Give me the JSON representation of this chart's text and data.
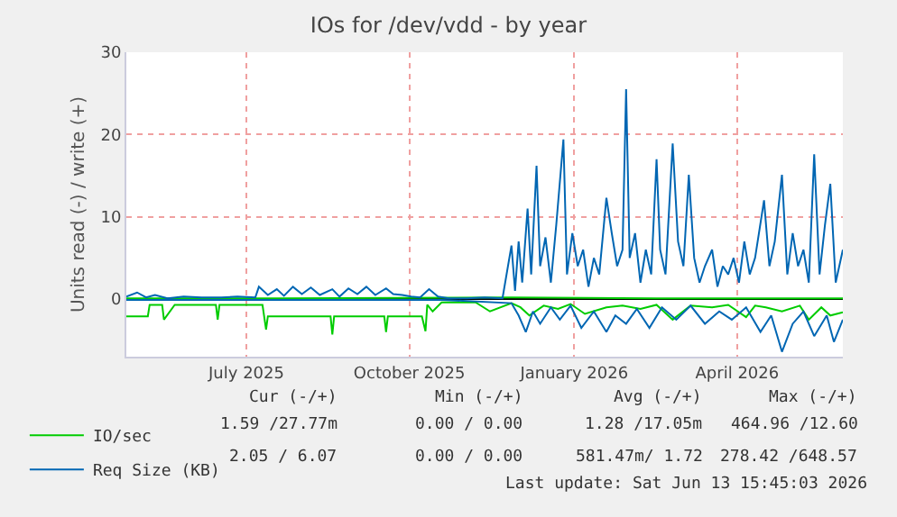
{
  "chart_data": {
    "type": "line",
    "title": "IOs for /dev/vdd - by year",
    "ylabel": "Units read (-) / write (+)",
    "xlim": [
      "2025-05-09",
      "2026-06-13"
    ],
    "xticks": [
      {
        "value": "2025-07-15",
        "label": "July 2025"
      },
      {
        "value": "2025-10-14",
        "label": "October 2025"
      },
      {
        "value": "2026-01-14",
        "label": "January 2026"
      },
      {
        "value": "2026-04-15",
        "label": "April 2026"
      }
    ],
    "ylim": [
      -7,
      30
    ],
    "yticks": [
      0,
      10,
      20,
      30
    ],
    "grid": true,
    "legend": "bottom left",
    "marker": "none",
    "line_style": "solid",
    "series": [
      {
        "name": "IO/sec",
        "color": "#00cc00",
        "x": [
          "2025-05-09",
          "2025-05-21",
          "2025-05-22",
          "2025-05-29",
          "2025-05-30",
          "2025-06-05",
          "2025-06-28",
          "2025-06-29",
          "2025-06-30",
          "2025-07-24",
          "2025-07-26",
          "2025-07-27",
          "2025-07-30",
          "2025-08-31",
          "2025-09-01",
          "2025-09-02",
          "2025-09-30",
          "2025-10-01",
          "2025-10-02",
          "2025-10-21",
          "2025-10-23",
          "2025-10-24",
          "2025-10-27",
          "2025-11-01",
          "2025-11-20",
          "2025-11-28",
          "2025-12-10",
          "2025-12-15",
          "2025-12-20",
          "2025-12-28",
          "2026-01-05",
          "2026-01-12",
          "2026-01-20",
          "2026-02-01",
          "2026-02-10",
          "2026-02-20",
          "2026-03-01",
          "2026-03-10",
          "2026-03-20",
          "2026-04-01",
          "2026-04-10",
          "2026-04-20",
          "2026-04-25",
          "2026-05-01",
          "2026-05-10",
          "2026-05-20",
          "2026-05-25",
          "2026-06-01",
          "2026-06-06",
          "2026-06-13"
        ],
        "values": [
          -2.1,
          -2.1,
          -0.7,
          -0.7,
          -2.5,
          -0.7,
          -0.7,
          -2.5,
          -0.7,
          -0.7,
          -3.7,
          -2.1,
          -2.1,
          -2.1,
          -4.3,
          -2.1,
          -2.1,
          -4.0,
          -2.1,
          -2.1,
          -3.9,
          -0.7,
          -1.5,
          -0.4,
          -0.4,
          -1.5,
          -0.5,
          -1.0,
          -2.0,
          -0.8,
          -1.2,
          -0.6,
          -1.8,
          -1.0,
          -0.8,
          -1.2,
          -0.7,
          -2.5,
          -0.8,
          -1.0,
          -0.7,
          -2.2,
          -0.8,
          -1.0,
          -1.5,
          -0.8,
          -2.5,
          -1.0,
          -2.0,
          -1.6
        ]
      },
      {
        "color": "#00cc00",
        "x": [
          "2025-05-09",
          "2025-08-01",
          "2025-12-10",
          "2026-03-01",
          "2026-06-13"
        ],
        "values": [
          0.1,
          0.1,
          0.2,
          0.1,
          0.1
        ]
      },
      {
        "name": "Req Size (KB)",
        "color": "#0066b3",
        "x": [
          "2025-05-09",
          "2025-05-15",
          "2025-05-20",
          "2025-05-25",
          "2025-06-01",
          "2025-06-10",
          "2025-06-20",
          "2025-07-01",
          "2025-07-10",
          "2025-07-20",
          "2025-07-22",
          "2025-07-27",
          "2025-08-01",
          "2025-08-05",
          "2025-08-10",
          "2025-08-15",
          "2025-08-20",
          "2025-08-25",
          "2025-09-01",
          "2025-09-05",
          "2025-09-10",
          "2025-09-15",
          "2025-09-20",
          "2025-09-25",
          "2025-10-01",
          "2025-10-05",
          "2025-10-10",
          "2025-10-15",
          "2025-10-20",
          "2025-10-25",
          "2025-10-30",
          "2025-11-05",
          "2025-11-15",
          "2025-11-25",
          "2025-12-05",
          "2025-12-10",
          "2025-12-12",
          "2025-12-14",
          "2025-12-16",
          "2025-12-19",
          "2025-12-21",
          "2025-12-24",
          "2025-12-26",
          "2025-12-29",
          "2026-01-01",
          "2026-01-04",
          "2026-01-08",
          "2026-01-10",
          "2026-01-13",
          "2026-01-16",
          "2026-01-19",
          "2026-01-22",
          "2026-01-25",
          "2026-01-28",
          "2026-02-01",
          "2026-02-04",
          "2026-02-07",
          "2026-02-10",
          "2026-02-12",
          "2026-02-14",
          "2026-02-17",
          "2026-02-20",
          "2026-02-23",
          "2026-02-26",
          "2026-03-01",
          "2026-03-03",
          "2026-03-06",
          "2026-03-10",
          "2026-03-13",
          "2026-03-16",
          "2026-03-19",
          "2026-03-22",
          "2026-03-25",
          "2026-03-28",
          "2026-04-01",
          "2026-04-04",
          "2026-04-07",
          "2026-04-10",
          "2026-04-13",
          "2026-04-16",
          "2026-04-19",
          "2026-04-22",
          "2026-04-25",
          "2026-04-30",
          "2026-05-03",
          "2026-05-06",
          "2026-05-10",
          "2026-05-13",
          "2026-05-16",
          "2026-05-19",
          "2026-05-22",
          "2026-05-25",
          "2026-05-28",
          "2026-05-31",
          "2026-06-03",
          "2026-06-06",
          "2026-06-09",
          "2026-06-13"
        ],
        "values": [
          0.3,
          0.8,
          0.2,
          0.5,
          0.1,
          0.3,
          0.2,
          0.2,
          0.3,
          0.2,
          1.5,
          0.5,
          1.2,
          0.4,
          1.5,
          0.6,
          1.4,
          0.5,
          1.2,
          0.3,
          1.3,
          0.6,
          1.5,
          0.5,
          1.3,
          0.6,
          0.5,
          0.3,
          0.2,
          1.2,
          0.3,
          0.1,
          0.1,
          0.2,
          0.1,
          6.5,
          1.0,
          7.0,
          2.0,
          11.0,
          3.0,
          16.2,
          4.0,
          7.5,
          2.0,
          9.0,
          19.4,
          3.0,
          8.0,
          4.0,
          6.0,
          1.5,
          5.0,
          3.0,
          12.3,
          8.0,
          4.0,
          6.0,
          25.5,
          5.0,
          8.0,
          2.0,
          6.0,
          3.0,
          17.0,
          6.0,
          3.0,
          18.9,
          7.0,
          4.0,
          15.1,
          5.0,
          2.0,
          4.0,
          6.0,
          1.5,
          4.0,
          3.0,
          5.0,
          2.0,
          7.0,
          3.0,
          5.0,
          12.0,
          4.0,
          7.0,
          15.1,
          3.0,
          8.0,
          4.0,
          6.0,
          2.0,
          17.6,
          3.0,
          9.0,
          14.0,
          2.0,
          6.0
        ]
      },
      {
        "color": "#0066b3",
        "x": [
          "2025-05-09",
          "2025-08-01",
          "2025-11-01",
          "2025-12-10",
          "2025-12-14",
          "2025-12-18",
          "2025-12-22",
          "2025-12-26",
          "2026-01-01",
          "2026-01-06",
          "2026-01-12",
          "2026-01-18",
          "2026-01-25",
          "2026-02-01",
          "2026-02-06",
          "2026-02-12",
          "2026-02-18",
          "2026-02-25",
          "2026-03-04",
          "2026-03-12",
          "2026-03-20",
          "2026-03-28",
          "2026-04-05",
          "2026-04-12",
          "2026-04-20",
          "2026-04-28",
          "2026-05-04",
          "2026-05-10",
          "2026-05-16",
          "2026-05-22",
          "2026-05-28",
          "2026-06-04",
          "2026-06-08",
          "2026-06-13"
        ],
        "values": [
          -0.1,
          -0.1,
          -0.1,
          -0.5,
          -2.0,
          -4.0,
          -1.5,
          -3.0,
          -1.0,
          -2.5,
          -0.8,
          -3.5,
          -1.5,
          -4.0,
          -2.0,
          -3.0,
          -1.2,
          -3.5,
          -1.0,
          -2.5,
          -0.8,
          -3.0,
          -1.5,
          -2.5,
          -1.0,
          -4.0,
          -2.0,
          -6.4,
          -3.0,
          -1.5,
          -4.5,
          -2.0,
          -5.2,
          -2.5
        ]
      }
    ],
    "annotations": [
      "Cur (-/+)",
      "Min (-/+)",
      "Avg (-/+)",
      "Max (-/+)",
      "1.59 /27.77m",
      "0.00 / 0.00",
      "1.28 /17.05m",
      "464.96 /12.60",
      "2.05 / 6.07",
      "0.00 / 0.00",
      "581.47m/ 1.72",
      "278.42 /648.57",
      "Last update: Sat Jun 13 15:45:03 2026"
    ]
  }
}
